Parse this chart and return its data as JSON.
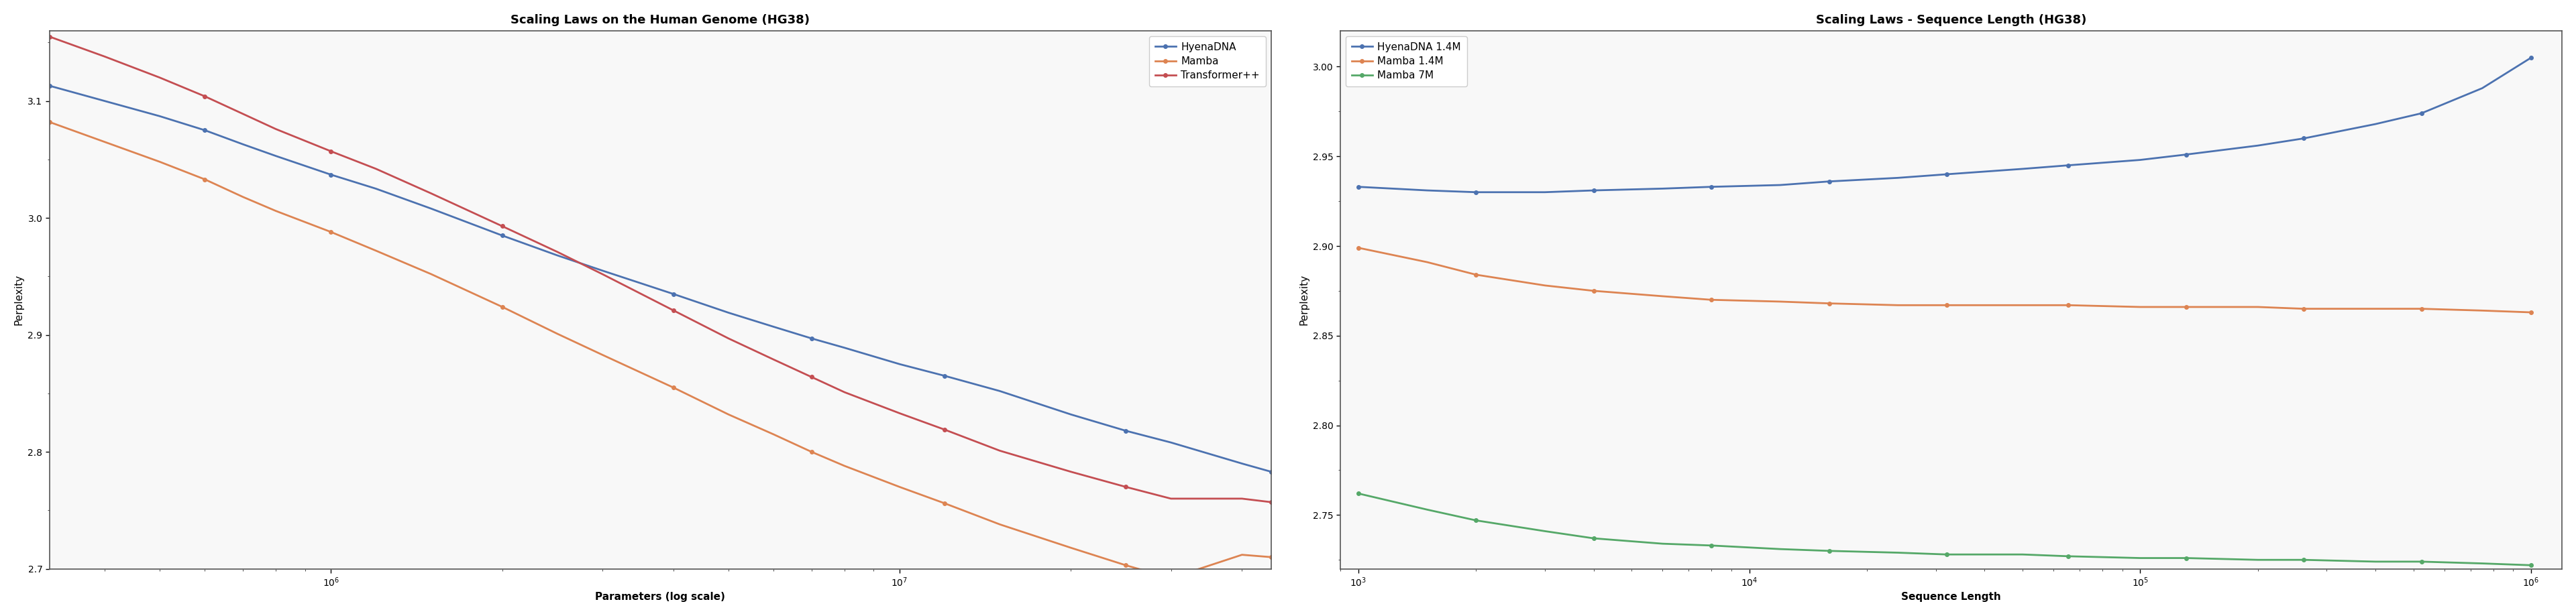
{
  "chart1": {
    "title": "Scaling Laws on the Human Genome (HG38)",
    "xlabel": "Parameters (log scale)",
    "ylabel": "Perplexity",
    "ylim": [
      2.7,
      3.16
    ],
    "xlim": [
      320000.0,
      45000000.0
    ],
    "yticks": [
      2.7,
      2.8,
      2.9,
      3.0,
      3.1
    ],
    "series": [
      {
        "label": "HyenaDNA",
        "color": "#4C72B0",
        "x": [
          320000.0,
          400000.0,
          500000.0,
          600000.0,
          700000.0,
          800000.0,
          1000000.0,
          1200000.0,
          1500000.0,
          2000000.0,
          2500000.0,
          3000000.0,
          4000000.0,
          5000000.0,
          6000000.0,
          7000000.0,
          8000000.0,
          10000000.0,
          12000000.0,
          15000000.0,
          20000000.0,
          25000000.0,
          30000000.0,
          40000000.0,
          45000000.0
        ],
        "y": [
          3.113,
          3.1,
          3.087,
          3.075,
          3.063,
          3.053,
          3.037,
          3.025,
          3.008,
          2.985,
          2.968,
          2.955,
          2.935,
          2.919,
          2.907,
          2.897,
          2.889,
          2.875,
          2.865,
          2.852,
          2.832,
          2.818,
          2.808,
          2.79,
          2.783
        ]
      },
      {
        "label": "Mamba",
        "color": "#DD8452",
        "x": [
          320000.0,
          400000.0,
          500000.0,
          600000.0,
          700000.0,
          800000.0,
          1000000.0,
          1200000.0,
          1500000.0,
          2000000.0,
          2500000.0,
          3000000.0,
          4000000.0,
          5000000.0,
          6000000.0,
          7000000.0,
          8000000.0,
          10000000.0,
          12000000.0,
          15000000.0,
          20000000.0,
          25000000.0,
          30000000.0,
          40000000.0,
          45000000.0
        ],
        "y": [
          3.082,
          3.065,
          3.048,
          3.033,
          3.018,
          3.006,
          2.988,
          2.972,
          2.952,
          2.924,
          2.901,
          2.883,
          2.855,
          2.832,
          2.815,
          2.8,
          2.788,
          2.77,
          2.756,
          2.738,
          2.718,
          2.703,
          2.692,
          2.712,
          2.71
        ]
      },
      {
        "label": "Transformer++",
        "color": "#C44E52",
        "x": [
          320000.0,
          400000.0,
          500000.0,
          600000.0,
          700000.0,
          800000.0,
          1000000.0,
          1200000.0,
          1500000.0,
          2000000.0,
          2500000.0,
          3000000.0,
          4000000.0,
          5000000.0,
          6000000.0,
          7000000.0,
          8000000.0,
          10000000.0,
          12000000.0,
          15000000.0,
          20000000.0,
          25000000.0,
          30000000.0,
          40000000.0,
          45000000.0
        ],
        "y": [
          3.155,
          3.138,
          3.12,
          3.104,
          3.089,
          3.076,
          3.057,
          3.042,
          3.021,
          2.993,
          2.971,
          2.952,
          2.921,
          2.897,
          2.879,
          2.864,
          2.851,
          2.833,
          2.819,
          2.801,
          2.783,
          2.77,
          2.76,
          2.76,
          2.757
        ]
      }
    ]
  },
  "chart2": {
    "title": "Scaling Laws - Sequence Length (HG38)",
    "xlabel": "Sequence Length",
    "ylabel": "Perplexity",
    "ylim": [
      2.72,
      3.02
    ],
    "xlim": [
      900,
      1200000
    ],
    "yticks": [
      2.75,
      2.8,
      2.85,
      2.9,
      2.95,
      3.0
    ],
    "series": [
      {
        "label": "HyenaDNA 1.4M",
        "color": "#4C72B0",
        "x": [
          1000,
          1500,
          2000,
          3000,
          4000,
          6000,
          8000,
          12000,
          16000,
          24000,
          32000,
          50000,
          65536,
          100000,
          131072,
          200000,
          262144,
          400000,
          524288,
          750000,
          1000000
        ],
        "y": [
          2.933,
          2.931,
          2.93,
          2.93,
          2.931,
          2.932,
          2.933,
          2.934,
          2.936,
          2.938,
          2.94,
          2.943,
          2.945,
          2.948,
          2.951,
          2.956,
          2.96,
          2.968,
          2.974,
          2.988,
          3.005
        ]
      },
      {
        "label": "Mamba 1.4M",
        "color": "#DD8452",
        "x": [
          1000,
          1500,
          2000,
          3000,
          4000,
          6000,
          8000,
          12000,
          16000,
          24000,
          32000,
          50000,
          65536,
          100000,
          131072,
          200000,
          262144,
          400000,
          524288,
          750000,
          1000000
        ],
        "y": [
          2.899,
          2.891,
          2.884,
          2.878,
          2.875,
          2.872,
          2.87,
          2.869,
          2.868,
          2.867,
          2.867,
          2.867,
          2.867,
          2.866,
          2.866,
          2.866,
          2.865,
          2.865,
          2.865,
          2.864,
          2.863
        ]
      },
      {
        "label": "Mamba 7M",
        "color": "#55A868",
        "x": [
          1000,
          1500,
          2000,
          3000,
          4000,
          6000,
          8000,
          12000,
          16000,
          24000,
          32000,
          50000,
          65536,
          100000,
          131072,
          200000,
          262144,
          400000,
          524288,
          750000,
          1000000
        ],
        "y": [
          2.762,
          2.753,
          2.747,
          2.741,
          2.737,
          2.734,
          2.733,
          2.731,
          2.73,
          2.729,
          2.728,
          2.728,
          2.727,
          2.726,
          2.726,
          2.725,
          2.725,
          2.724,
          2.724,
          2.723,
          2.722
        ]
      }
    ]
  },
  "bg_color": "#f8f8f8",
  "spine_color": "#555555",
  "marker": "o",
  "markersize": 4,
  "linewidth": 2.0,
  "title_fontsize": 13,
  "label_fontsize": 11,
  "tick_fontsize": 10,
  "legend_fontsize": 11
}
